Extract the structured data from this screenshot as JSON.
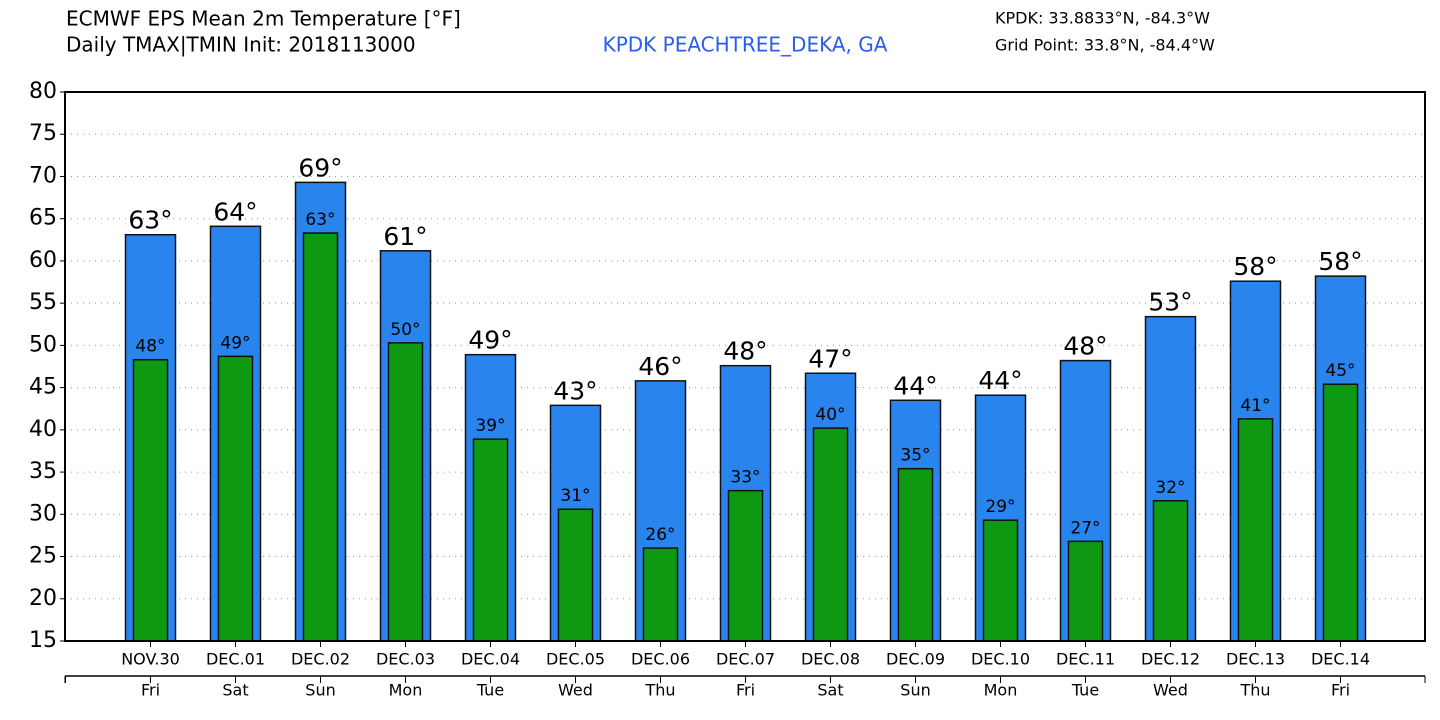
{
  "chart_data": {
    "type": "bar",
    "title": "ECMWF EPS Mean 2m Temperature [°F]",
    "subtitle": "Daily TMAX|TMIN Init: 2018113000",
    "station": "KPDK PEACHTREE_DEKA, GA",
    "station_coords": "KPDK: 33.8833°N, -84.3°W",
    "grid_point": "Grid Point: 33.8°N, -84.4°W",
    "categories": [
      "NOV.30",
      "DEC.01",
      "DEC.02",
      "DEC.03",
      "DEC.04",
      "DEC.05",
      "DEC.06",
      "DEC.07",
      "DEC.08",
      "DEC.09",
      "DEC.10",
      "DEC.11",
      "DEC.12",
      "DEC.13",
      "DEC.14"
    ],
    "weekdays": [
      "Fri",
      "Sat",
      "Sun",
      "Mon",
      "Tue",
      "Wed",
      "Thu",
      "Fri",
      "Sat",
      "Sun",
      "Mon",
      "Tue",
      "Wed",
      "Thu",
      "Fri"
    ],
    "series": [
      {
        "color": "#2a84ee",
        "values": [
          63.1,
          64.1,
          69.3,
          61.2,
          48.9,
          42.9,
          45.8,
          47.6,
          46.7,
          43.5,
          44.1,
          48.2,
          53.4,
          57.6,
          58.2
        ],
        "value_labels": [
          "63°",
          "64°",
          "69°",
          "61°",
          "49°",
          "43°",
          "46°",
          "48°",
          "47°",
          "44°",
          "44°",
          "48°",
          "53°",
          "58°",
          "58°"
        ]
      },
      {
        "color": "#0d9a12",
        "values": [
          48.3,
          48.7,
          63.3,
          50.3,
          38.9,
          30.6,
          26.0,
          32.8,
          40.2,
          35.4,
          29.3,
          26.8,
          31.6,
          41.3,
          45.4
        ],
        "value_labels": [
          "48°",
          "49°",
          "63°",
          "50°",
          "39°",
          "31°",
          "26°",
          "33°",
          "40°",
          "35°",
          "29°",
          "27°",
          "32°",
          "41°",
          "45°"
        ]
      }
    ],
    "ylim": [
      15,
      80
    ],
    "yticks": [
      15,
      20,
      25,
      30,
      35,
      40,
      45,
      50,
      55,
      60,
      65,
      70,
      75,
      80
    ],
    "grid": true
  }
}
